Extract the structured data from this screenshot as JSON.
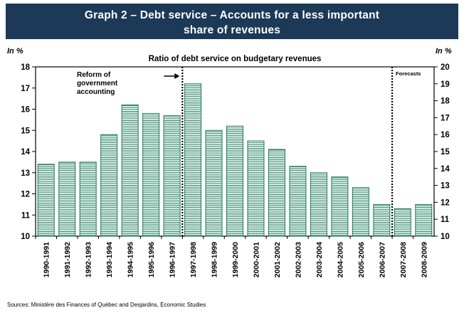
{
  "header": {
    "title_line1": "Graph 2 – Debt service – Accounts for a less important",
    "title_line2": "share of revenues"
  },
  "axis_units": {
    "left": "In %",
    "right": "In %"
  },
  "source": "Sources: Ministère des Finances of Québec and Desjardins, Economic Studies",
  "colors": {
    "title_bg": "#1c3957",
    "bar_stroke": "#1a7a5a",
    "bar_fill": "#ffffff"
  },
  "chart_data": {
    "type": "bar",
    "title": "Ratio of debt service on budgetary revenues",
    "categories": [
      "1990-1991",
      "1991-1992",
      "1992-1993",
      "1993-1994",
      "1994-1995",
      "1995-1996",
      "1996-1997",
      "1997-1998",
      "1998-1999",
      "1999-2000",
      "2000-2001",
      "2001-2002",
      "2002-2003",
      "2003-2004",
      "2004-2005",
      "2005-2006",
      "2006-2007",
      "2007-2008",
      "2008-2009"
    ],
    "series": [
      {
        "values": [
          13.4,
          13.5,
          13.5,
          14.8,
          16.2,
          15.8,
          15.7,
          17.2,
          15.0,
          15.2,
          14.5,
          14.1,
          13.3,
          13.0,
          12.8,
          12.3,
          11.5,
          11.3,
          11.5
        ]
      }
    ],
    "ylim": [
      10,
      18
    ],
    "yticks": [
      10,
      11,
      12,
      13,
      14,
      15,
      16,
      17,
      18
    ],
    "ylim_right": [
      10,
      20
    ],
    "yticks_right": [
      10,
      11,
      12,
      13,
      14,
      15,
      16,
      17,
      18,
      19,
      20
    ],
    "annotations": [
      {
        "text_lines": [
          "Reform of",
          "government",
          "accounting"
        ],
        "arrow": "right",
        "divider_after_index": 6
      },
      {
        "text_lines": [
          "Forecasts"
        ],
        "divider_after_index": 16
      }
    ],
    "grid": false
  }
}
